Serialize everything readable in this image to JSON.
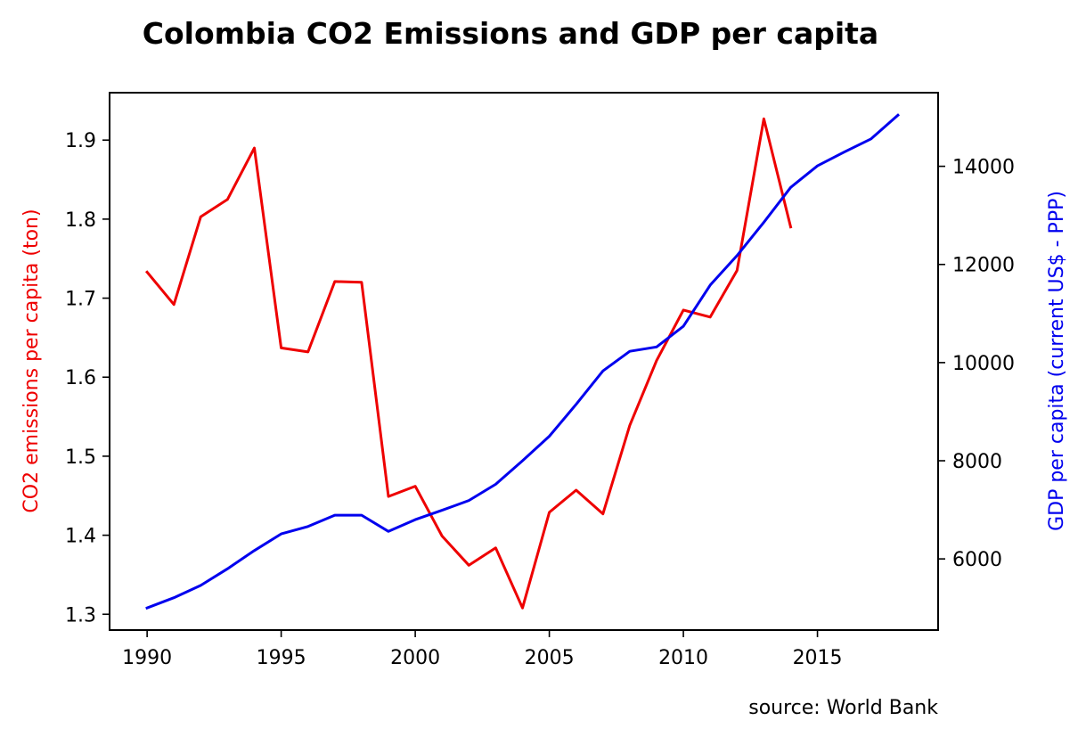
{
  "chart_data": {
    "type": "line",
    "title": "Colombia CO2 Emissions and GDP per capita",
    "xlabel": "",
    "x_ticks": [
      "1990",
      "1995",
      "2000",
      "2005",
      "2010",
      "2015"
    ],
    "x_tick_values": [
      1990,
      1995,
      2000,
      2005,
      2010,
      2015
    ],
    "xlim": [
      1988.6,
      2019.5
    ],
    "left_axis": {
      "label": "CO2 emissions per capita (ton)",
      "color": "#ee0000",
      "ylim": [
        1.28,
        1.96
      ],
      "ticks": [
        "1.3",
        "1.4",
        "1.5",
        "1.6",
        "1.7",
        "1.8",
        "1.9"
      ],
      "tick_values": [
        1.3,
        1.4,
        1.5,
        1.6,
        1.7,
        1.8,
        1.9
      ]
    },
    "right_axis": {
      "label": "GDP per capita (current US$ - PPP)",
      "color": "#0000ee",
      "ylim": [
        4550,
        15500
      ],
      "ticks": [
        "6000",
        "8000",
        "10000",
        "12000",
        "14000"
      ],
      "tick_values": [
        6000,
        8000,
        10000,
        12000,
        14000
      ]
    },
    "series": [
      {
        "axis": "left",
        "color": "#ee0000",
        "x": [
          1990,
          1991,
          1992,
          1993,
          1994,
          1995,
          1996,
          1997,
          1998,
          1999,
          2000,
          2001,
          2002,
          2003,
          2004,
          2005,
          2006,
          2007,
          2008,
          2009,
          2010,
          2011,
          2012,
          2013,
          2014
        ],
        "values": [
          1.733,
          1.692,
          1.803,
          1.825,
          1.89,
          1.637,
          1.632,
          1.721,
          1.72,
          1.449,
          1.462,
          1.399,
          1.362,
          1.384,
          1.308,
          1.429,
          1.457,
          1.427,
          1.539,
          1.621,
          1.685,
          1.676,
          1.735,
          1.927,
          1.79
        ]
      },
      {
        "axis": "right",
        "color": "#0000ee",
        "x": [
          1990,
          1991,
          1992,
          1993,
          1994,
          1995,
          1996,
          1997,
          1998,
          1999,
          2000,
          2001,
          2002,
          2003,
          2004,
          2005,
          2006,
          2007,
          2008,
          2009,
          2010,
          2011,
          2012,
          2013,
          2014,
          2015,
          2016,
          2017,
          2018
        ],
        "values": [
          5000,
          5210,
          5460,
          5800,
          6170,
          6510,
          6660,
          6890,
          6890,
          6560,
          6800,
          6990,
          7190,
          7520,
          8000,
          8500,
          9150,
          9830,
          10230,
          10320,
          10740,
          11580,
          12180,
          12860,
          13570,
          14010,
          14290,
          14560,
          15040
        ]
      }
    ],
    "source_note": "source: World Bank",
    "grid": false,
    "legend": "none"
  }
}
